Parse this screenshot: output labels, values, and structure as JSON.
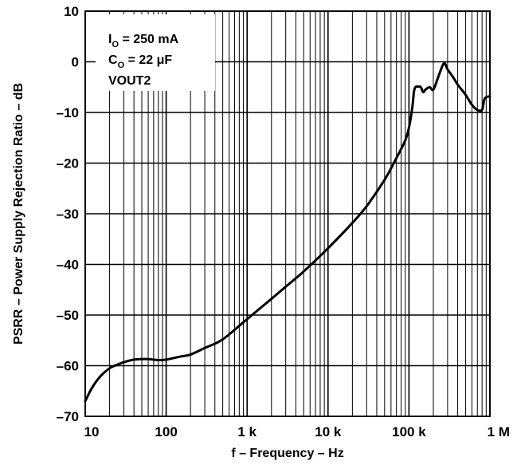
{
  "chart_data": {
    "type": "line",
    "xlabel": "f – Frequency – Hz",
    "ylabel": "PSRR – Power Supply Rejection Ratio – dB",
    "x_scale": "log",
    "xlim": [
      10,
      1000000
    ],
    "ylim": [
      -70,
      10
    ],
    "grid": true,
    "x_ticks": [
      {
        "value": 10,
        "label": "10"
      },
      {
        "value": 100,
        "label": "100"
      },
      {
        "value": 1000,
        "label": "1 k"
      },
      {
        "value": 10000,
        "label": "10 k"
      },
      {
        "value": 100000,
        "label": "100 k"
      },
      {
        "value": 1000000,
        "label": "1 M"
      }
    ],
    "y_ticks": [
      {
        "value": 10,
        "label": "10"
      },
      {
        "value": 0,
        "label": "0"
      },
      {
        "value": -10,
        "label": "–10"
      },
      {
        "value": -20,
        "label": "–20"
      },
      {
        "value": -30,
        "label": "–30"
      },
      {
        "value": -40,
        "label": "–40"
      },
      {
        "value": -50,
        "label": "–50"
      },
      {
        "value": -60,
        "label": "–60"
      },
      {
        "value": -70,
        "label": "–70"
      }
    ],
    "annotation": {
      "lines": [
        {
          "main": "I",
          "sub": "O",
          "rest": " = 250 mA"
        },
        {
          "main": "C",
          "sub": "O",
          "rest": " = 22 μF"
        },
        {
          "main": "VOUT2",
          "sub": "",
          "rest": ""
        }
      ]
    },
    "series": [
      {
        "x": [
          10,
          12,
          15,
          20,
          25,
          30,
          40,
          50,
          60,
          70,
          80,
          100,
          150,
          200,
          300,
          500,
          1000,
          2000,
          3000,
          5000,
          10000,
          20000,
          30000,
          50000,
          70000,
          90000,
          100000,
          110000,
          115000,
          120000,
          130000,
          140000,
          150000,
          160000,
          180000,
          200000,
          230000,
          270000,
          300000,
          350000,
          400000,
          500000,
          600000,
          700000,
          800000,
          850000,
          900000,
          1000000
        ],
        "y": [
          -67,
          -64.5,
          -62.3,
          -60.5,
          -59.8,
          -59.3,
          -58.8,
          -58.7,
          -58.7,
          -58.8,
          -58.9,
          -58.8,
          -58.2,
          -57.8,
          -56.5,
          -54.8,
          -50.8,
          -46.8,
          -44.4,
          -41.4,
          -36.8,
          -31.8,
          -28.5,
          -23.3,
          -19,
          -15.5,
          -13,
          -9,
          -6,
          -5,
          -4.9,
          -5,
          -6,
          -5.5,
          -5,
          -5.5,
          -3,
          -0.3,
          -1.5,
          -3,
          -4.5,
          -6.5,
          -8.5,
          -9.5,
          -9.5,
          -7.5,
          -7,
          -6.8
        ]
      }
    ]
  }
}
